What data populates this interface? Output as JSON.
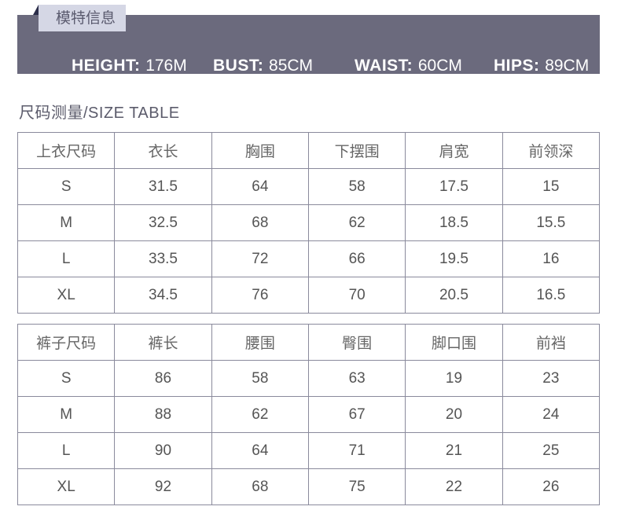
{
  "model_info": {
    "label": "模特信息",
    "stats": [
      {
        "key": "HEIGHT:",
        "value": "176M"
      },
      {
        "key": "BUST:",
        "value": "85CM"
      },
      {
        "key": "WAIST:",
        "value": "60CM"
      },
      {
        "key": "HIPS:",
        "value": "89CM"
      }
    ]
  },
  "size_title": "尺码测量/SIZE TABLE",
  "top_table": {
    "headers": [
      "上衣尺码",
      "衣长",
      "胸围",
      "下摆围",
      "肩宽",
      "前领深"
    ],
    "rows": [
      [
        "S",
        "31.5",
        "64",
        "58",
        "17.5",
        "15"
      ],
      [
        "M",
        "32.5",
        "68",
        "62",
        "18.5",
        "15.5"
      ],
      [
        "L",
        "33.5",
        "72",
        "66",
        "19.5",
        "16"
      ],
      [
        "XL",
        "34.5",
        "76",
        "70",
        "20.5",
        "16.5"
      ]
    ]
  },
  "pants_table": {
    "headers": [
      "裤子尺码",
      "裤长",
      "腰围",
      "臀围",
      "脚口围",
      "前裆"
    ],
    "rows": [
      [
        "S",
        "86",
        "58",
        "63",
        "19",
        "23"
      ],
      [
        "M",
        "88",
        "62",
        "67",
        "20",
        "24"
      ],
      [
        "L",
        "90",
        "64",
        "71",
        "21",
        "25"
      ],
      [
        "XL",
        "92",
        "68",
        "75",
        "22",
        "26"
      ]
    ]
  }
}
